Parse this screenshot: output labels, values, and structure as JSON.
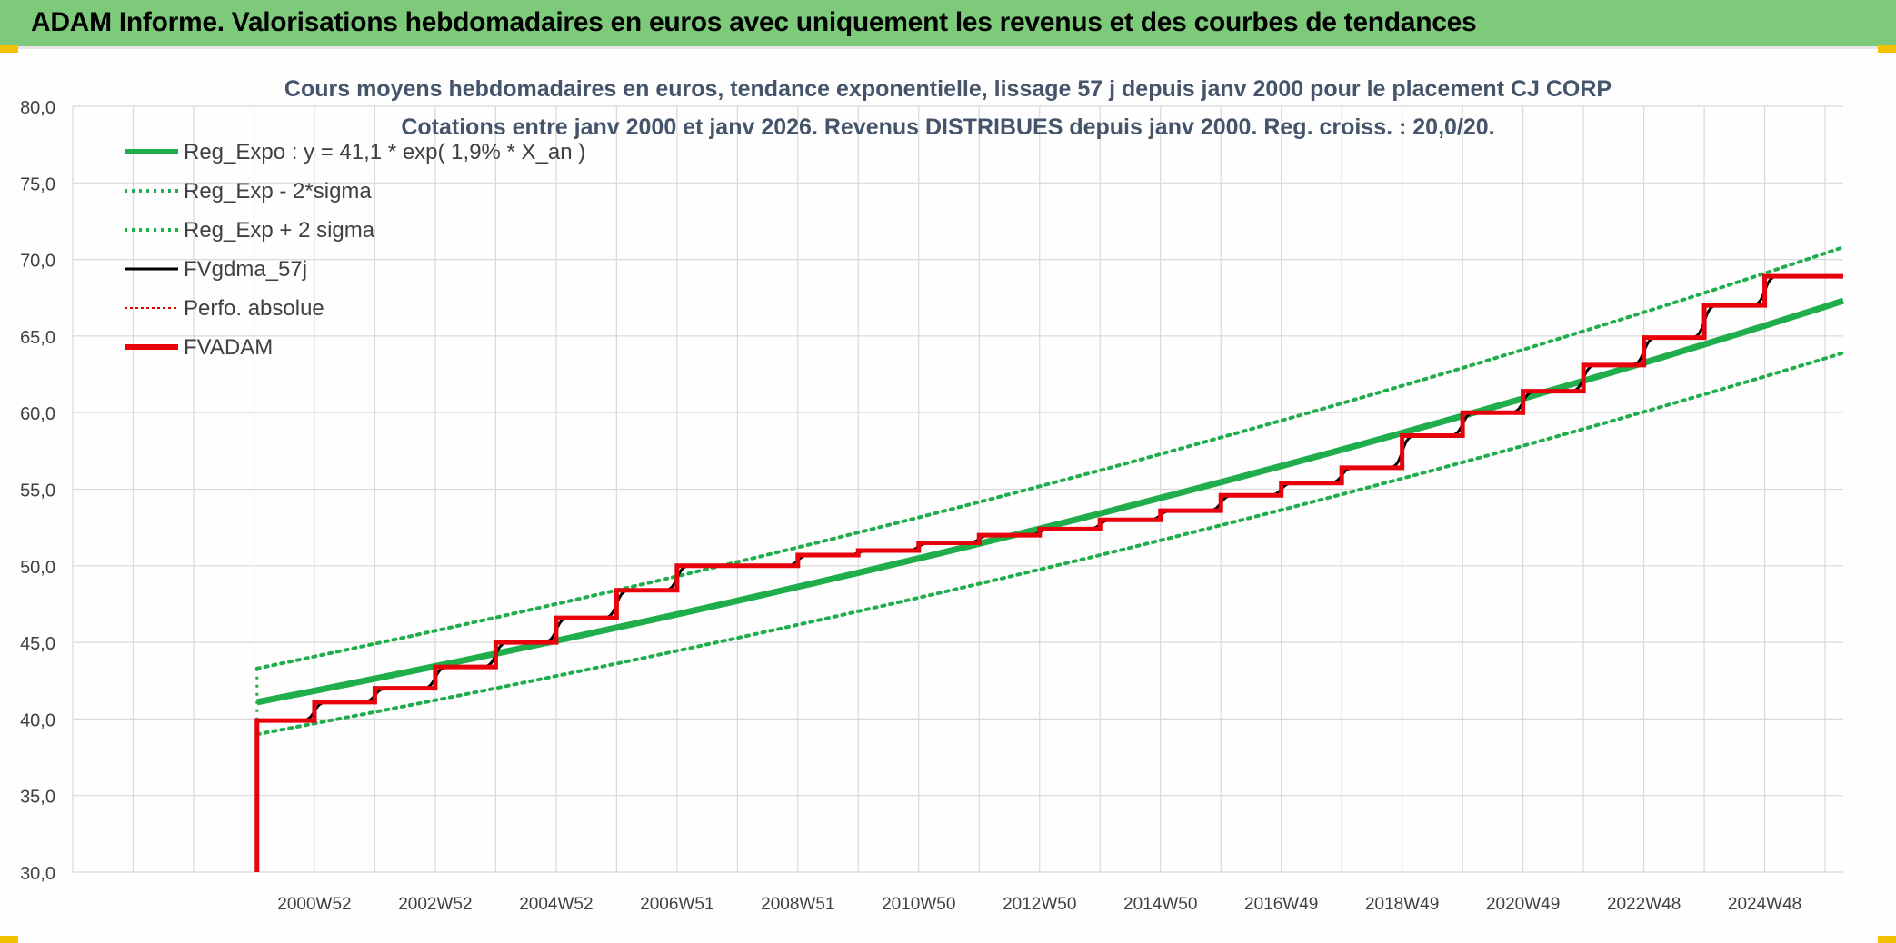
{
  "banner": {
    "title": "ADAM Informe. Valorisations hebdomadaires en euros avec uniquement les revenus et des courbes de tendances"
  },
  "colors": {
    "banner_bg": "#7dca7a",
    "trend": "#1fae4b",
    "band": "#1fae4b",
    "fvgdma": "#000000",
    "perfo": "#d90000",
    "fvadam": "#e8000b",
    "title_text": "#44546a"
  },
  "chart_data": {
    "type": "line",
    "title_line1": "Cours moyens hebdomadaires en euros, tendance exponentielle, lissage 57 j depuis janv 2000 pour le placement CJ CORP",
    "title_line2": "Cotations entre janv 2000 et janv 2026. Revenus DISTRIBUES depuis janv 2000. Reg. croiss. : 20,0/20.",
    "xlabel": "",
    "ylabel": "",
    "ylim": [
      30,
      80
    ],
    "yticks": [
      "30,0",
      "35,0",
      "40,0",
      "45,0",
      "50,0",
      "55,0",
      "60,0",
      "65,0",
      "70,0",
      "75,0",
      "80,0"
    ],
    "xlim": [
      1997.0,
      2026.3
    ],
    "xtick_positions": [
      2001,
      2003,
      2005,
      2007,
      2009,
      2011,
      2013,
      2015,
      2017,
      2019,
      2021,
      2023,
      2025
    ],
    "xtick_labels": [
      "2000W52",
      "2002W52",
      "2004W52",
      "2006W51",
      "2008W51",
      "2010W50",
      "2012W50",
      "2014W50",
      "2016W49",
      "2018W49",
      "2020W49",
      "2022W48",
      "2024W48"
    ],
    "grid": true,
    "legend_position": "top-left",
    "legend": [
      {
        "label": "Reg_Expo : y = 41,1 * exp( 1,9% *  X_an )",
        "style": "solid-thick",
        "color": "#1fae4b"
      },
      {
        "label": "Reg_Exp - 2*sigma",
        "style": "dotted",
        "color": "#1fae4b"
      },
      {
        "label": "Reg_Exp + 2 sigma",
        "style": "dotted",
        "color": "#1fae4b"
      },
      {
        "label": "FVgdma_57j",
        "style": "solid",
        "color": "#000000"
      },
      {
        "label": "Perfo. absolue",
        "style": "dotted-thin",
        "color": "#d90000"
      },
      {
        "label": "FVADAM",
        "style": "solid-thick",
        "color": "#e8000b"
      }
    ],
    "series": [
      {
        "name": "Reg_Expo : y = 41,1 * exp( 1,9% *  X_an )",
        "x": [
          2000.05,
          2026.3
        ],
        "y": [
          41.1,
          67.3
        ]
      },
      {
        "name": "Reg_Exp - 2*sigma",
        "x": [
          2000.05,
          2026.3
        ],
        "y": [
          39.0,
          63.9
        ]
      },
      {
        "name": "Reg_Exp + 2 sigma",
        "x": [
          2000.05,
          2026.3
        ],
        "y": [
          43.3,
          70.8
        ]
      },
      {
        "name": "FVADAM",
        "steps": [
          {
            "x": 2000.05,
            "y": 30.0
          },
          {
            "x": 2000.05,
            "y": 39.9
          },
          {
            "x": 2001.0,
            "y": 41.1
          },
          {
            "x": 2002.0,
            "y": 42.0
          },
          {
            "x": 2003.0,
            "y": 43.4
          },
          {
            "x": 2004.0,
            "y": 45.0
          },
          {
            "x": 2005.0,
            "y": 46.6
          },
          {
            "x": 2006.0,
            "y": 48.4
          },
          {
            "x": 2007.0,
            "y": 50.0
          },
          {
            "x": 2009.0,
            "y": 50.7
          },
          {
            "x": 2010.0,
            "y": 51.0
          },
          {
            "x": 2011.0,
            "y": 51.5
          },
          {
            "x": 2012.0,
            "y": 52.0
          },
          {
            "x": 2013.0,
            "y": 52.4
          },
          {
            "x": 2014.0,
            "y": 53.0
          },
          {
            "x": 2015.0,
            "y": 53.6
          },
          {
            "x": 2016.0,
            "y": 54.6
          },
          {
            "x": 2017.0,
            "y": 55.4
          },
          {
            "x": 2018.0,
            "y": 56.4
          },
          {
            "x": 2019.0,
            "y": 58.5
          },
          {
            "x": 2020.0,
            "y": 60.0
          },
          {
            "x": 2021.0,
            "y": 61.4
          },
          {
            "x": 2022.0,
            "y": 63.1
          },
          {
            "x": 2023.0,
            "y": 64.9
          },
          {
            "x": 2024.0,
            "y": 67.0
          },
          {
            "x": 2025.0,
            "y": 68.9
          }
        ],
        "x_end": 2026.3
      }
    ]
  }
}
